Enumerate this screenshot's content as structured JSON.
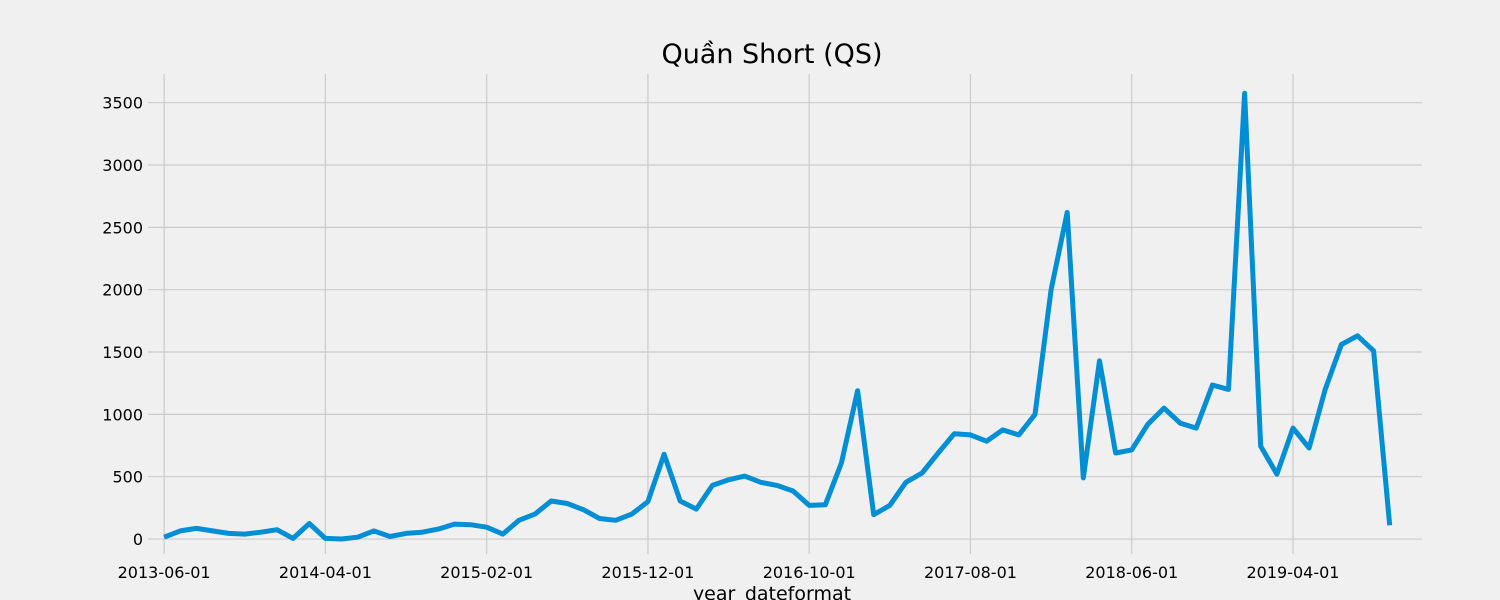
{
  "chart_data": {
    "type": "line",
    "title": "Quần Short (QS)",
    "xlabel": "year_dateformat",
    "ylabel": "",
    "grid": true,
    "legend": "none",
    "xlim": [
      "2013-05-01",
      "2019-12-01"
    ],
    "ylim": [
      -120,
      3730
    ],
    "x_ticks": [
      "2013-06-01",
      "2014-04-01",
      "2015-02-01",
      "2015-12-01",
      "2016-10-01",
      "2017-08-01",
      "2018-06-01",
      "2019-04-01"
    ],
    "y_ticks": [
      0,
      500,
      1000,
      1500,
      2000,
      2500,
      3000,
      3500
    ],
    "series": [
      {
        "color": "#008fd5",
        "x": [
          "2013-06-01",
          "2013-07-01",
          "2013-08-01",
          "2013-09-01",
          "2013-10-01",
          "2013-11-01",
          "2013-12-01",
          "2014-01-01",
          "2014-02-01",
          "2014-03-01",
          "2014-04-01",
          "2014-05-01",
          "2014-06-01",
          "2014-07-01",
          "2014-08-01",
          "2014-09-01",
          "2014-10-01",
          "2014-11-01",
          "2014-12-01",
          "2015-01-01",
          "2015-02-01",
          "2015-03-01",
          "2015-04-01",
          "2015-05-01",
          "2015-06-01",
          "2015-07-01",
          "2015-08-01",
          "2015-09-01",
          "2015-10-01",
          "2015-11-01",
          "2015-12-01",
          "2016-01-01",
          "2016-02-01",
          "2016-03-01",
          "2016-04-01",
          "2016-05-01",
          "2016-06-01",
          "2016-07-01",
          "2016-08-01",
          "2016-09-01",
          "2016-10-01",
          "2016-11-01",
          "2016-12-01",
          "2017-01-01",
          "2017-02-01",
          "2017-03-01",
          "2017-04-01",
          "2017-05-01",
          "2017-06-01",
          "2017-07-01",
          "2017-08-01",
          "2017-09-01",
          "2017-10-01",
          "2017-11-01",
          "2017-12-01",
          "2018-01-01",
          "2018-02-01",
          "2018-03-01",
          "2018-04-01",
          "2018-05-01",
          "2018-06-01",
          "2018-07-01",
          "2018-08-01",
          "2018-09-01",
          "2018-10-01",
          "2018-11-01",
          "2018-12-01",
          "2019-01-01",
          "2019-02-01",
          "2019-03-01",
          "2019-04-01",
          "2019-05-01",
          "2019-06-01",
          "2019-07-01",
          "2019-08-01",
          "2019-09-01",
          "2019-10-01"
        ],
        "values": [
          15,
          65,
          85,
          65,
          45,
          40,
          55,
          75,
          5,
          125,
          5,
          0,
          15,
          65,
          20,
          45,
          55,
          80,
          120,
          115,
          95,
          40,
          150,
          200,
          305,
          285,
          235,
          165,
          150,
          200,
          300,
          680,
          305,
          240,
          430,
          475,
          505,
          455,
          430,
          385,
          270,
          275,
          610,
          1190,
          195,
          270,
          455,
          530,
          690,
          845,
          835,
          785,
          875,
          835,
          1000,
          2000,
          2620,
          490,
          1430,
          690,
          715,
          920,
          1050,
          930,
          890,
          1235,
          1200,
          3575,
          745,
          520,
          890,
          730,
          1200,
          1560,
          1630,
          1510,
          110
        ]
      }
    ]
  }
}
